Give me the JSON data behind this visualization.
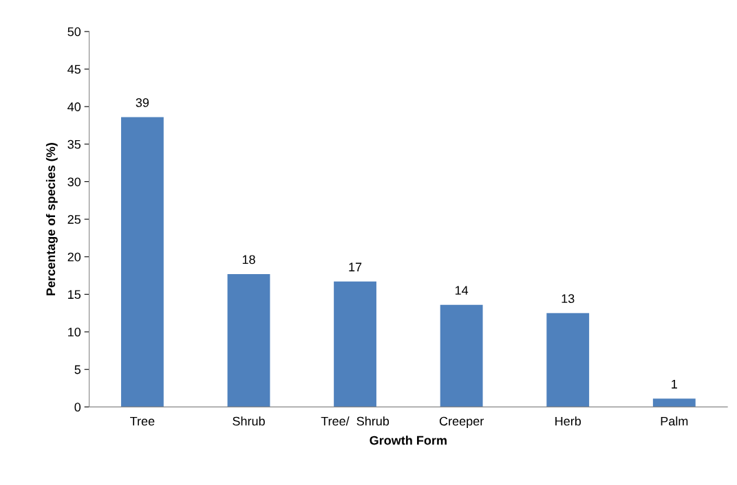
{
  "chart_data": {
    "type": "bar",
    "xlabel": "Growth Form",
    "ylabel": "Percentage of species (%)",
    "categories": [
      "Tree",
      "Shrub",
      "Tree/  Shrub",
      "Creeper",
      "Herb",
      "Palm"
    ],
    "values": [
      38.6,
      17.7,
      16.7,
      13.6,
      12.5,
      1.1
    ],
    "value_labels": [
      "39",
      "18",
      "17",
      "14",
      "13",
      "1"
    ],
    "color": "#4f81bd",
    "ylim": [
      0,
      50
    ],
    "yticks": [
      0,
      5,
      10,
      15,
      20,
      25,
      30,
      35,
      40,
      45,
      50
    ],
    "grid": false
  }
}
